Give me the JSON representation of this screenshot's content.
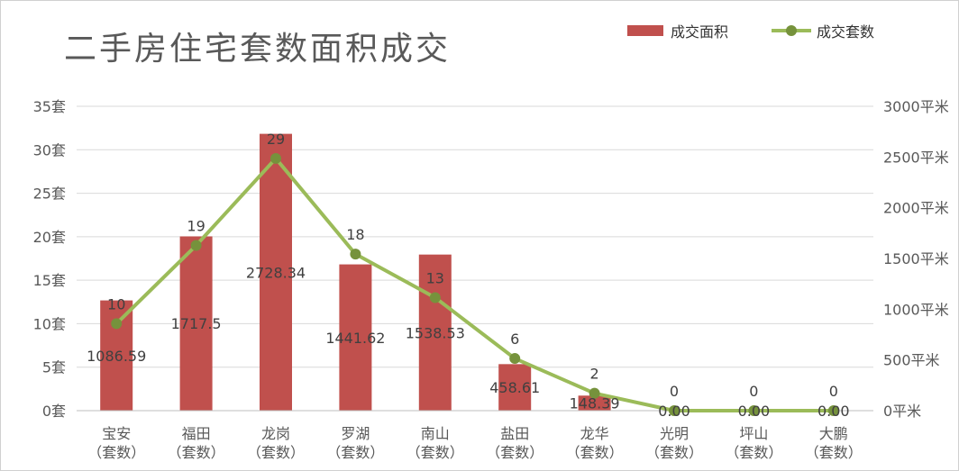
{
  "title": "二手房住宅套数面积成交",
  "legend": {
    "bar_label": "成交面积",
    "line_label": "成交套数"
  },
  "colors": {
    "bar": "#c0504d",
    "line": "#9bbb59",
    "line_marker": "#76923c",
    "grid": "#d9d9d9",
    "axis_text": "#595959",
    "label_text": "#404040"
  },
  "chart_data": {
    "type": "bar",
    "title": "二手房住宅套数面积成交",
    "categories": [
      "宝安\n（套数）",
      "福田\n（套数）",
      "龙岗\n（套数）",
      "罗湖\n（套数）",
      "南山\n（套数）",
      "盐田\n（套数）",
      "龙华\n（套数）",
      "光明\n（套数）",
      "坪山\n（套数）",
      "大鹏\n（套数）"
    ],
    "series": [
      {
        "name": "成交面积",
        "type": "bar",
        "axis": "right",
        "values": [
          1086.59,
          1717.5,
          2728.34,
          1441.62,
          1538.53,
          458.61,
          148.39,
          0,
          0,
          0
        ],
        "labels": [
          "1086.59",
          "1717.5",
          "2728.34",
          "1441.62",
          "1538.53",
          "458.61",
          "148.39",
          "0.00",
          "0.00",
          "0.00"
        ]
      },
      {
        "name": "成交套数",
        "type": "line",
        "axis": "left",
        "values": [
          10,
          19,
          29,
          18,
          13,
          6,
          2,
          0,
          0,
          0
        ],
        "labels": [
          "10",
          "19",
          "29",
          "18",
          "13",
          "6",
          "2",
          "0",
          "0",
          "0"
        ]
      }
    ],
    "left_axis": {
      "ylim": [
        0,
        35
      ],
      "step": 5,
      "tick_labels": [
        "0套",
        "5套",
        "10套",
        "15套",
        "20套",
        "25套",
        "30套",
        "35套"
      ]
    },
    "right_axis": {
      "ylim": [
        0,
        3000
      ],
      "step": 500,
      "tick_labels": [
        "0平米",
        "500平米",
        "1000平米",
        "1500平米",
        "2000平米",
        "2500平米",
        "3000平米"
      ]
    },
    "grid": true,
    "legend_position": "top-right"
  }
}
